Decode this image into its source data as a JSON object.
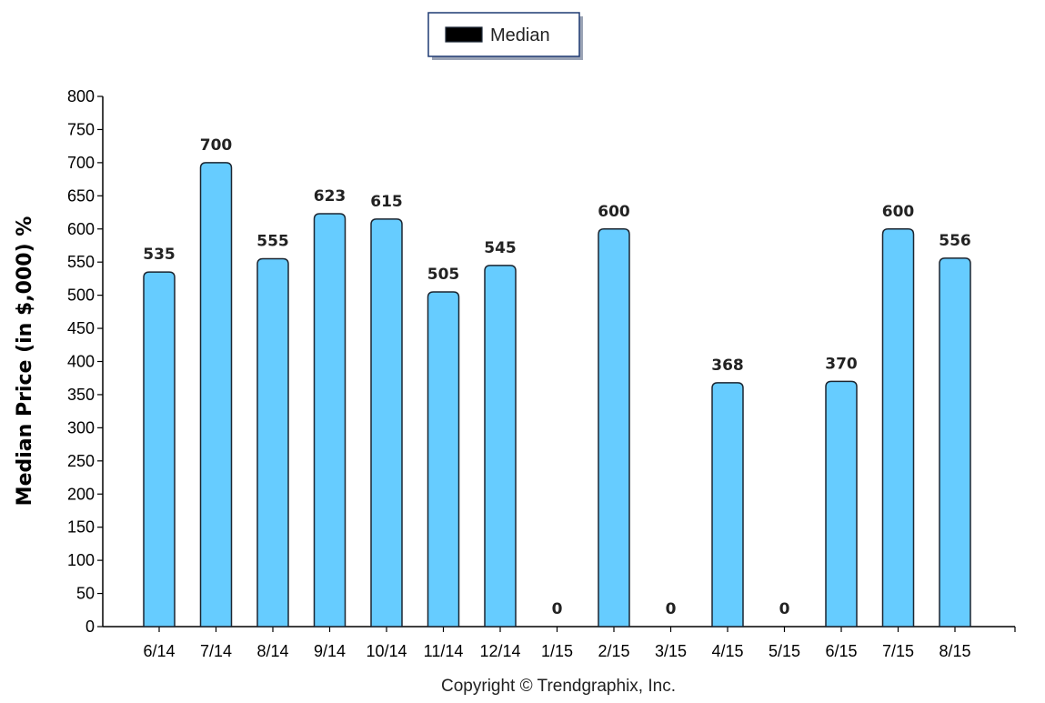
{
  "legend": {
    "label": "Median"
  },
  "copyright": "Copyright © Trendgraphix, Inc.",
  "colors": {
    "bar_fill": "#66ccff",
    "bar_stroke": "#1b2530"
  },
  "chart_data": {
    "type": "bar",
    "categories": [
      "6/14",
      "7/14",
      "8/14",
      "9/14",
      "10/14",
      "11/14",
      "12/14",
      "1/15",
      "2/15",
      "3/15",
      "4/15",
      "5/15",
      "6/15",
      "7/15",
      "8/15"
    ],
    "series": [
      {
        "name": "Median",
        "values": [
          535,
          700,
          555,
          623,
          615,
          505,
          545,
          0,
          600,
          0,
          368,
          0,
          370,
          600,
          556
        ]
      }
    ],
    "title": "",
    "xlabel": "",
    "ylabel": "Median Price (in $,000) %",
    "ylim": [
      0,
      800
    ],
    "yticks": [
      0,
      50,
      100,
      150,
      200,
      250,
      300,
      350,
      400,
      450,
      500,
      550,
      600,
      650,
      700,
      750,
      800
    ],
    "data_labels": true,
    "grid": false,
    "legend_position": "top-center"
  }
}
